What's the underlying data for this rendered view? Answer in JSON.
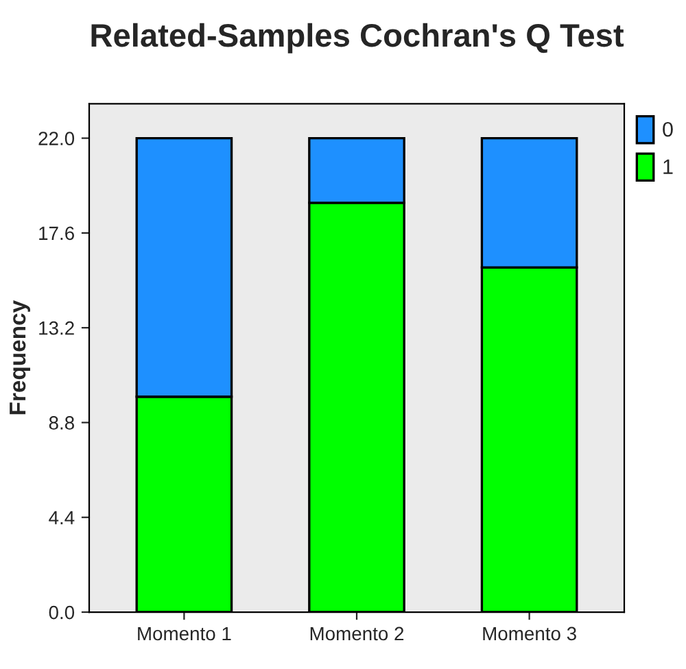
{
  "chart_data": {
    "type": "bar",
    "title": "Related-Samples Cochran's Q Test",
    "ylabel": "Frequency",
    "categories": [
      "Momento 1",
      "Momento 2",
      "Momento 3"
    ],
    "stacked": true,
    "series": [
      {
        "name": "1",
        "color": "#00ff00",
        "values": [
          10,
          19,
          16
        ]
      },
      {
        "name": "0",
        "color": "#1e90ff",
        "values": [
          12,
          3,
          6
        ]
      }
    ],
    "ylim": [
      0,
      23.6
    ],
    "yticks": [
      {
        "value": 0,
        "label": "0.0"
      },
      {
        "value": 4.4,
        "label": "4.4"
      },
      {
        "value": 8.8,
        "label": "8.8"
      },
      {
        "value": 13.2,
        "label": "13.2"
      },
      {
        "value": 17.6,
        "label": "17.6"
      },
      {
        "value": 22,
        "label": "22.0"
      }
    ],
    "grid": false,
    "legend": "top right"
  }
}
